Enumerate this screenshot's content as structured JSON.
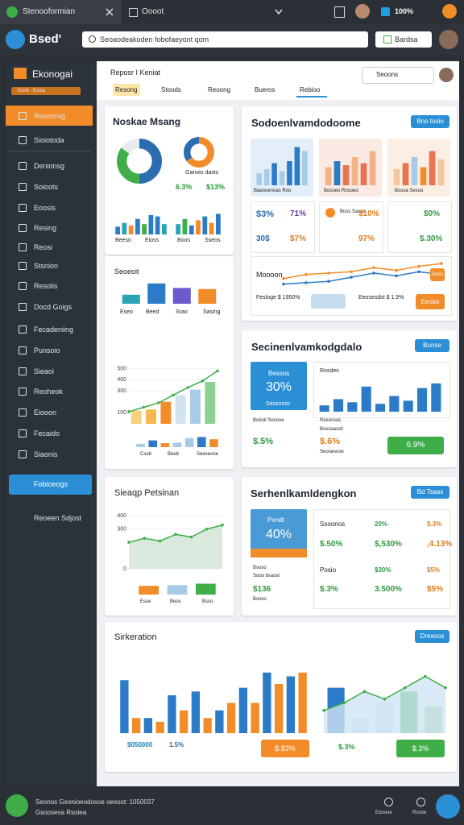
{
  "browser": {
    "tab1": "Stenooformian",
    "tab2": "Oooot",
    "zoom": "100%"
  },
  "toolbar": {
    "logo": "Bsed'",
    "search": "Seoaodeakoden fobofaeyont qom",
    "button": "Bardsa"
  },
  "sidebar": {
    "title": "Ekonogai",
    "badge": "Eonit  ·  Eosia",
    "items": [
      "Resoorog",
      "Sioiotoda",
      "Denionsg",
      "Soioots",
      "Eoosis",
      "Resing",
      "Reosi",
      "Stsnion",
      "Resolis",
      "Docd Goigs",
      "Fecadeniing",
      "Punsoio",
      "Sieaoi",
      "Reoheok",
      "Eiooon",
      "Fecaido",
      "Siaonis"
    ],
    "button": "Fobioeogs",
    "link": "Reoeen Sdjost"
  },
  "header": {
    "title": "Reposr I Keniat",
    "tabs": [
      "Resong",
      "Stoods",
      "Reoong",
      "Bueros",
      "Rebioo"
    ],
    "search": "Seoons"
  },
  "card_a": {
    "title": "Noskae Msang",
    "legend": "Ganoio dasts",
    "stat1": "6.3%",
    "stat2": "$13%",
    "donut1": {
      "type": "donut",
      "values": [
        50,
        35,
        15
      ],
      "colors": [
        "#2b6cb0",
        "#3fae49",
        "#e8ecf0"
      ]
    },
    "donut2": {
      "type": "donut",
      "values": [
        65,
        35
      ],
      "colors": [
        "#f28c28",
        "#2b6cb0"
      ]
    },
    "bars1": {
      "type": "bar",
      "ylim": [
        0,
        100
      ],
      "bars": [
        30,
        45,
        35,
        60,
        40,
        75,
        70,
        40
      ],
      "colors": [
        "#2b7bc8",
        "#2aa3b5",
        "#f28c28",
        "#2b7bc8",
        "#3fae49",
        "#2b7bc8",
        "#2b7bc8",
        "#2aa3b5"
      ]
    },
    "bars2": {
      "type": "bar",
      "ylim": [
        0,
        100
      ],
      "bars": [
        40,
        60,
        35,
        55,
        70,
        45,
        80
      ],
      "colors": [
        "#2aa3b5",
        "#3fae49",
        "#2b7bc8",
        "#f28c28",
        "#2b7bc8",
        "#f28c28",
        "#2b7bc8"
      ]
    },
    "labels": [
      "Beeso",
      "Eioss",
      "Boos",
      "Sseos"
    ]
  },
  "card_b": {
    "title": "Seoeoit",
    "labels": [
      "Eseo",
      "Beed",
      "Srao",
      "Sasing"
    ],
    "bars": {
      "type": "bar",
      "ylim": [
        0,
        100
      ],
      "bars": [
        40,
        90,
        70,
        65
      ],
      "colors": [
        "#2aa3b5",
        "#2b7bc8",
        "#6a5acd",
        "#f28c28"
      ]
    },
    "combo": {
      "type": "combo",
      "ylim": [
        0,
        600
      ],
      "yticks": [
        500,
        400,
        300,
        100
      ],
      "bars": [
        120,
        130,
        200,
        260,
        310,
        380
      ],
      "colors": [
        "#f5d27a",
        "#f5b84a",
        "#f28c28",
        "#cfe3f3",
        "#a8cbe8",
        "#8fcf8f"
      ],
      "line": [
        110,
        150,
        190,
        260,
        330,
        390,
        480
      ],
      "line_color": "#3fae49"
    },
    "small": {
      "type": "bar",
      "ylim": [
        0,
        100
      ],
      "bars": [
        30,
        60,
        35,
        40,
        80,
        90,
        70
      ],
      "colors": [
        "#a8cbe8",
        "#2b7bc8",
        "#f28c28",
        "#a8cbe8",
        "#a8cbe8",
        "#2b7bc8",
        "#f28c28"
      ]
    },
    "small_labels": [
      "Cseb",
      "Beeb",
      "Seeseone"
    ]
  },
  "card_c": {
    "title": "Sieaqp Petsinan",
    "area": {
      "type": "combo",
      "ylim": [
        0,
        450
      ],
      "yticks": [
        400,
        300,
        0
      ],
      "line": [
        200,
        230,
        210,
        260,
        240,
        300,
        330
      ],
      "fill": "#cfe3d6",
      "line_color": "#3fae49"
    },
    "bars": {
      "type": "bar",
      "ylim": [
        0,
        100
      ],
      "bars": [
        60,
        65,
        75
      ],
      "colors": [
        "#f28c28",
        "#a8cbe8",
        "#3fae49"
      ]
    },
    "labels": [
      "Esse",
      "Beos",
      "Bsso"
    ]
  },
  "card_d": {
    "title": "Sodoenlvamdodoome",
    "button": "Bno tosio",
    "thumbs": [
      {
        "label": "Baeooenoas Roo",
        "chart": {
          "type": "bar",
          "ylim": [
            0,
            100
          ],
          "bars": [
            30,
            40,
            55,
            35,
            60,
            95,
            85
          ],
          "colors": [
            "#a8cbe8",
            "#a8cbe8",
            "#2b7bc8",
            "#a8cbe8",
            "#2b7bc8",
            "#2b7bc8",
            "#a8cbe8"
          ]
        }
      },
      {
        "label": "Booseo Rosoeo",
        "chart": {
          "type": "bar",
          "ylim": [
            0,
            100
          ],
          "bars": [
            45,
            60,
            50,
            70,
            55,
            85
          ],
          "colors": [
            "#f4b183",
            "#2b7bc8",
            "#e97451",
            "#f4b183",
            "#e97451",
            "#f4b183"
          ]
        }
      },
      {
        "label": "Bossa Sesoo",
        "chart": {
          "type": "bar",
          "ylim": [
            0,
            100
          ],
          "bars": [
            40,
            55,
            70,
            45,
            85,
            65
          ],
          "colors": [
            "#f4c7a0",
            "#e97451",
            "#a8cbe8",
            "#f28c28",
            "#e97451",
            "#f4c7a0"
          ]
        }
      }
    ],
    "stats": [
      "$3%",
      "71%",
      "Boss Sasoa",
      "$10%",
      "$0%",
      "30$",
      "$7%",
      "97%",
      "$.30%"
    ],
    "line_title": "Moooon",
    "line_button": "Dsso",
    "line": {
      "type": "combo",
      "ylim": [
        0,
        100
      ],
      "line": [
        10,
        15,
        20,
        35,
        50,
        40,
        55,
        45
      ],
      "line_color": "#2b7bc8",
      "line2": [
        30,
        45,
        50,
        55,
        70,
        60,
        75,
        85
      ],
      "line2_color": "#f28c28"
    },
    "foot1": "Fesloge $ 1950%",
    "foot2": "Eeosesdst $ 1.9%",
    "foot_button": "Eeoso"
  },
  "card_e": {
    "title": "Secinenlvamkodgdalo",
    "button": "Bunse",
    "box_label": "Bessos",
    "box_value": "30%",
    "box_sub": "Sessonsc",
    "chart_label": "Rosdes",
    "chart": {
      "type": "bar",
      "ylim": [
        0,
        100
      ],
      "bars": [
        20,
        40,
        30,
        80,
        25,
        50,
        35,
        75,
        90
      ],
      "colors": [
        "#2b7bc8",
        "#2b7bc8",
        "#2b7bc8",
        "#2b7bc8",
        "#2b7bc8",
        "#2b7bc8",
        "#2b7bc8",
        "#2b7bc8",
        "#2b7bc8"
      ]
    },
    "chart_sub": "Rosossas",
    "row1": "Bolsd/ Sosooe",
    "val1": "$.5%",
    "row2": "Bossoasst/",
    "val2": "$.6%",
    "row3": "Seosesose",
    "action": "6.9%"
  },
  "card_f": {
    "title": "Serhenlkamldengkon",
    "button": "Bd Tsaas",
    "box_label": "Pendt",
    "box_value": "40%",
    "left": [
      "Bsoso",
      "Sooo bsasst",
      "$136",
      "Bsoso"
    ],
    "rows": [
      [
        "Ssoonos",
        "20%",
        "$.3%"
      ],
      [
        "$.50%",
        "$,530%",
        ",4.13%"
      ],
      [
        "Posio",
        "$30%",
        "$5%"
      ],
      [
        "$.3%",
        "3.500%",
        "$5%"
      ]
    ]
  },
  "card_g": {
    "title": "Sirkeration",
    "button": "Dresoos",
    "left": {
      "type": "bar",
      "ylim": [
        0,
        100
      ],
      "bars": [
        70,
        20,
        20,
        15,
        50,
        30,
        55,
        20,
        30,
        40,
        60,
        40,
        80,
        65,
        75,
        80
      ],
      "colors": [
        "#2b7bc8",
        "#f28c28",
        "#2b7bc8",
        "#f28c28",
        "#2b7bc8",
        "#f28c28",
        "#2b7bc8",
        "#f28c28",
        "#2b7bc8",
        "#f28c28",
        "#2b7bc8",
        "#f28c28",
        "#2b7bc8",
        "#f28c28",
        "#2b7bc8",
        "#f28c28"
      ]
    },
    "left_label1": "$050000",
    "left_label2": "1.5%",
    "left_action": "$.$3%",
    "right": {
      "type": "combo",
      "ylim": [
        0,
        100
      ],
      "bars": [
        60,
        20,
        40,
        55,
        35
      ],
      "colors": [
        "#2b7bc8",
        "#cfe3f3",
        "#cfe3f3",
        "#3fae49",
        "#8fcf8f"
      ],
      "line": [
        30,
        40,
        55,
        45,
        60,
        75,
        60
      ],
      "fill": "#cfe3f3",
      "line_color": "#3fae49"
    },
    "right_label": "$.3%",
    "right_action": "$.3%"
  },
  "footer": {
    "line1": "Seonos Geonioeodosoe oeesot: 1050037",
    "line2": "Gsoosesa Rsoiea",
    "icon1": "Eooooe",
    "icon2": "Rosoe"
  }
}
